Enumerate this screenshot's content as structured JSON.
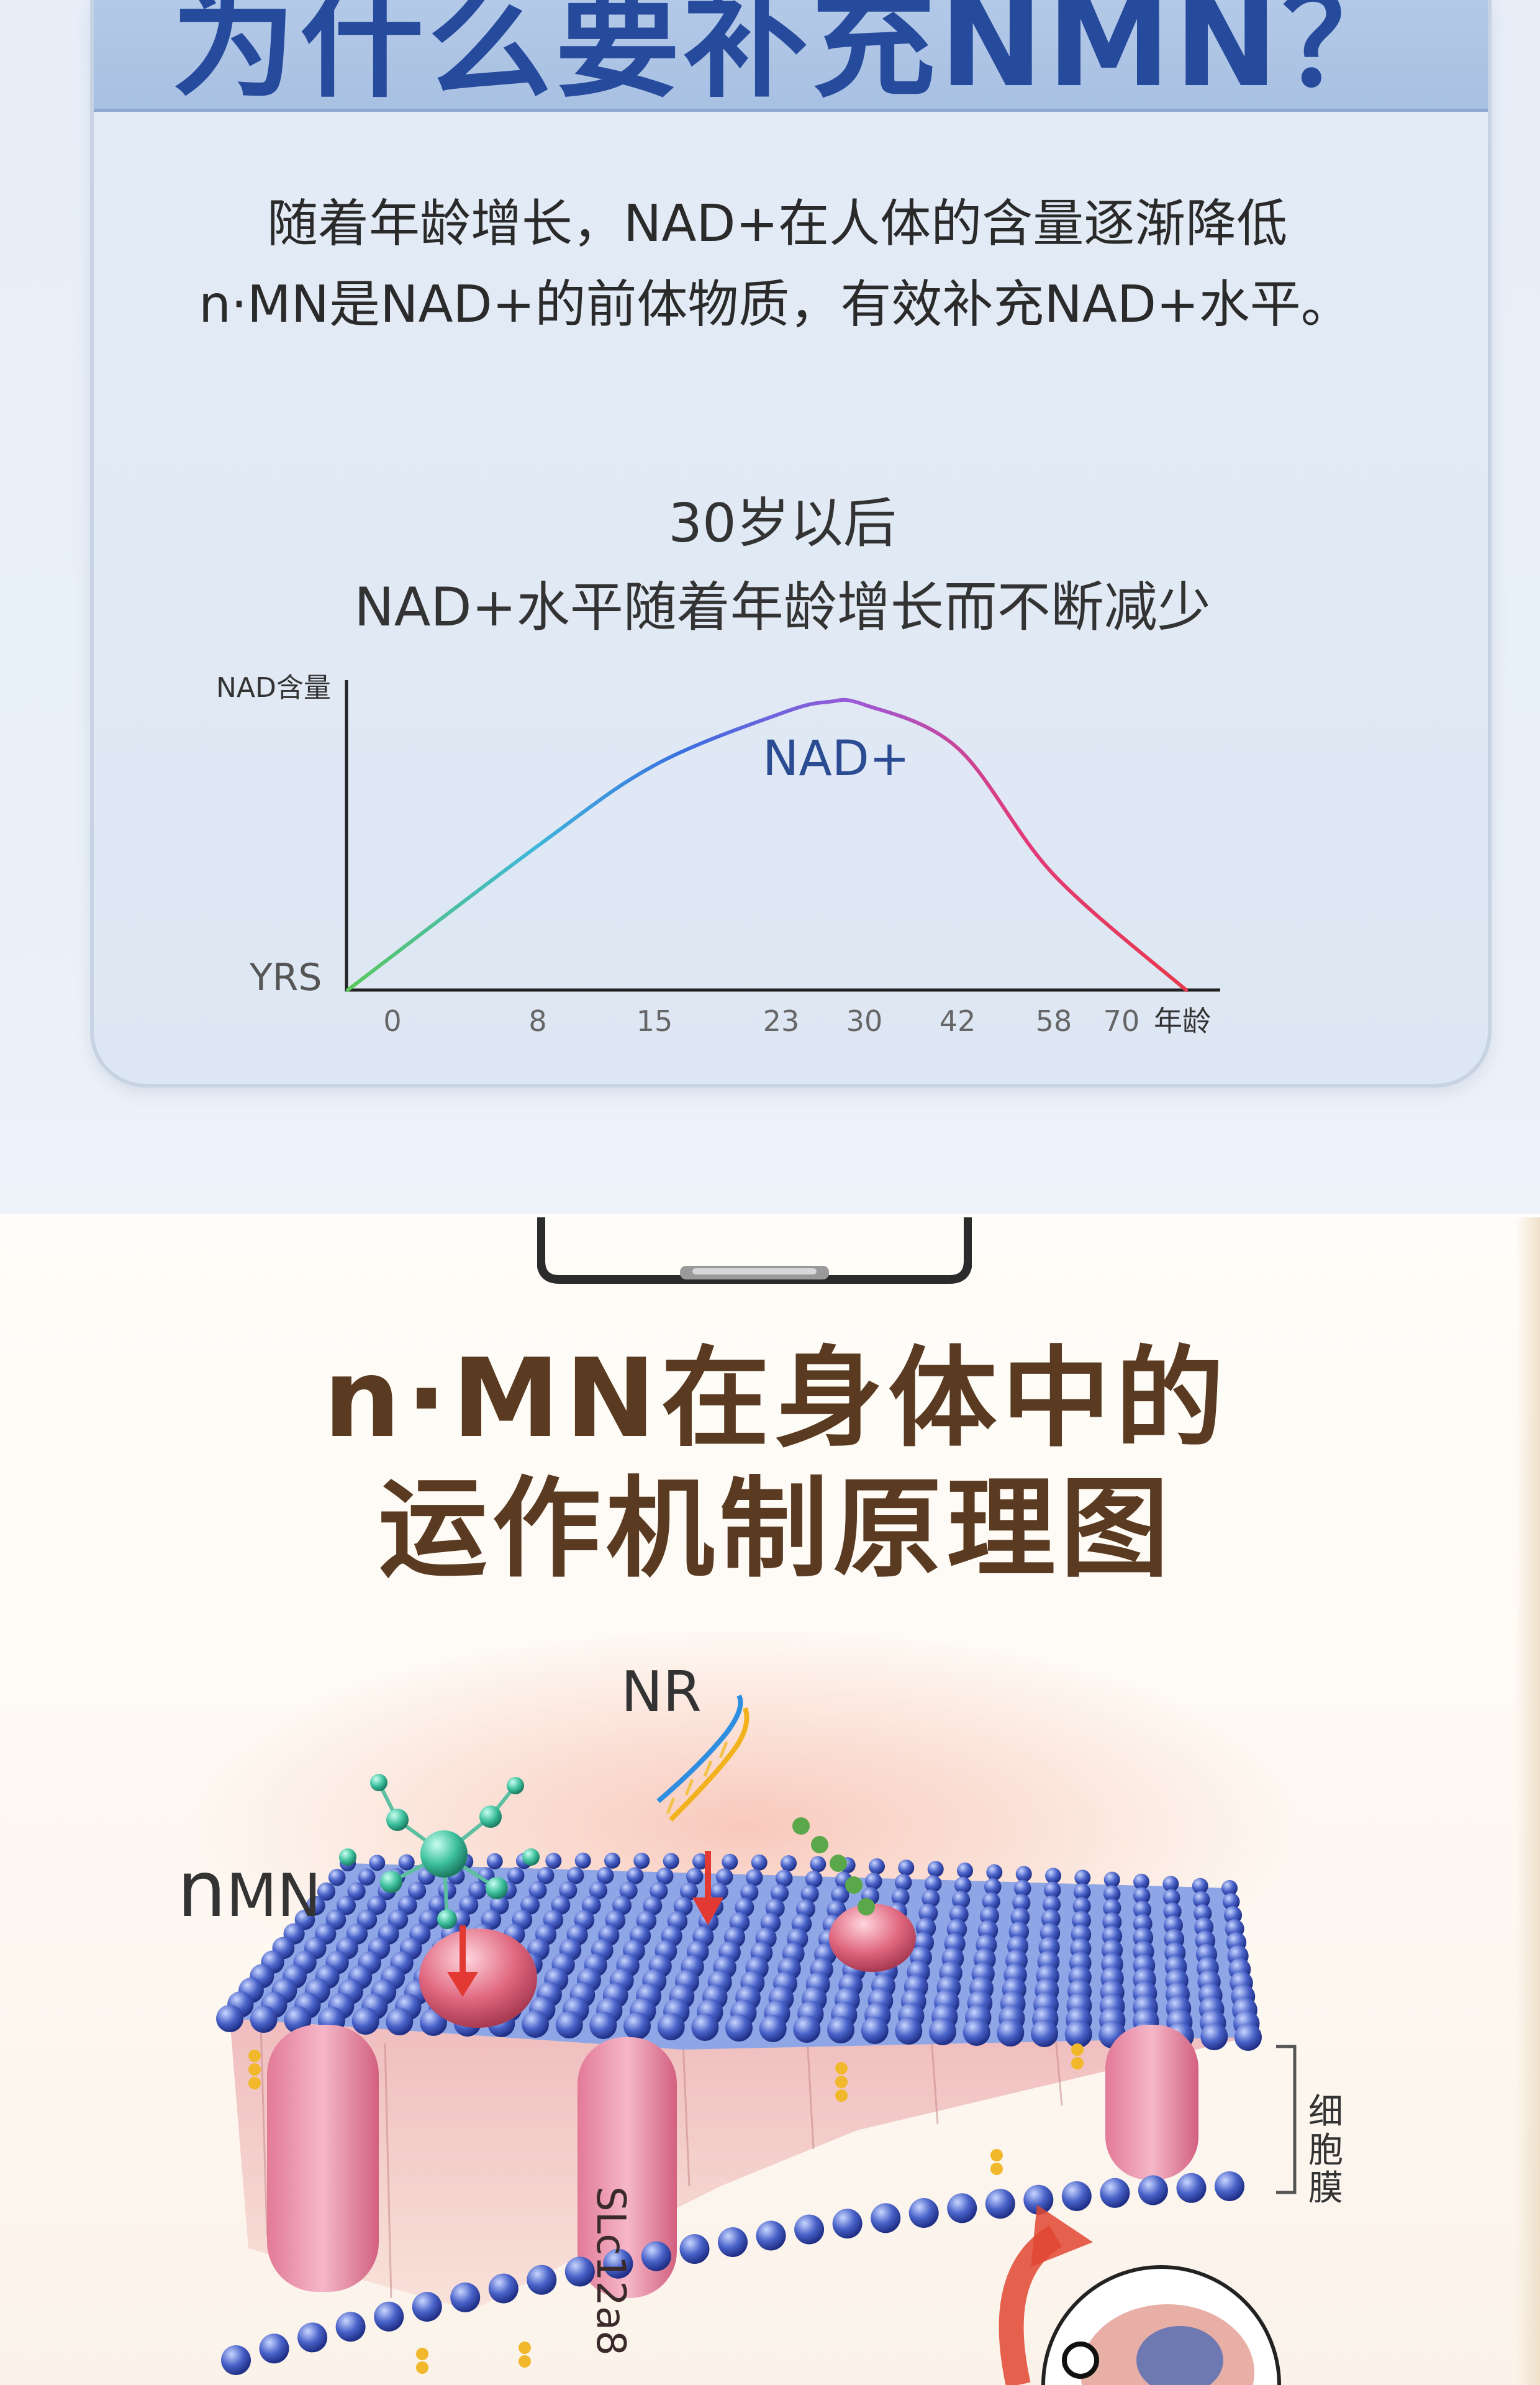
{
  "section1": {
    "title": "为什么要补充NMN？",
    "intro_line1": "随着年龄增长，NAD+在人体的含量逐渐降低",
    "intro_line2": "n·MN是NAD+的前体物质，有效补充NAD+水平。",
    "chart_heading_line1": "30岁以后",
    "chart_heading_line2": "NAD+水平随着年龄增长而不断减少"
  },
  "chart_data": {
    "type": "line",
    "title": "30岁以后 NAD+水平随着年龄增长而不断减少",
    "ylabel": "NAD含量",
    "xlabel": "年龄",
    "y_origin_label": "YRS",
    "categories": [
      "0",
      "8",
      "15",
      "23",
      "30",
      "42",
      "58",
      "70"
    ],
    "series": [
      {
        "name": "NAD+",
        "x": [
          0,
          8,
          15,
          23,
          27,
          30,
          42,
          58,
          70
        ],
        "y": [
          0,
          0.5,
          0.78,
          0.96,
          1.0,
          0.99,
          0.84,
          0.4,
          0.0
        ]
      }
    ],
    "grid": false,
    "legend": "none",
    "line_gradient": [
      "#5ac85a",
      "#3fb7d9",
      "#3a6fe0",
      "#9a5ad8",
      "#e23a7a",
      "#e8394a"
    ]
  },
  "section2": {
    "title_line1": "n·MN在身体中的",
    "title_line2": "运作机制原理图",
    "label_nr": "NR",
    "label_nmn_n": "n",
    "label_nmn_rest": "MN",
    "label_membrane": "细胞膜",
    "label_transporter": "SLc12a8"
  }
}
